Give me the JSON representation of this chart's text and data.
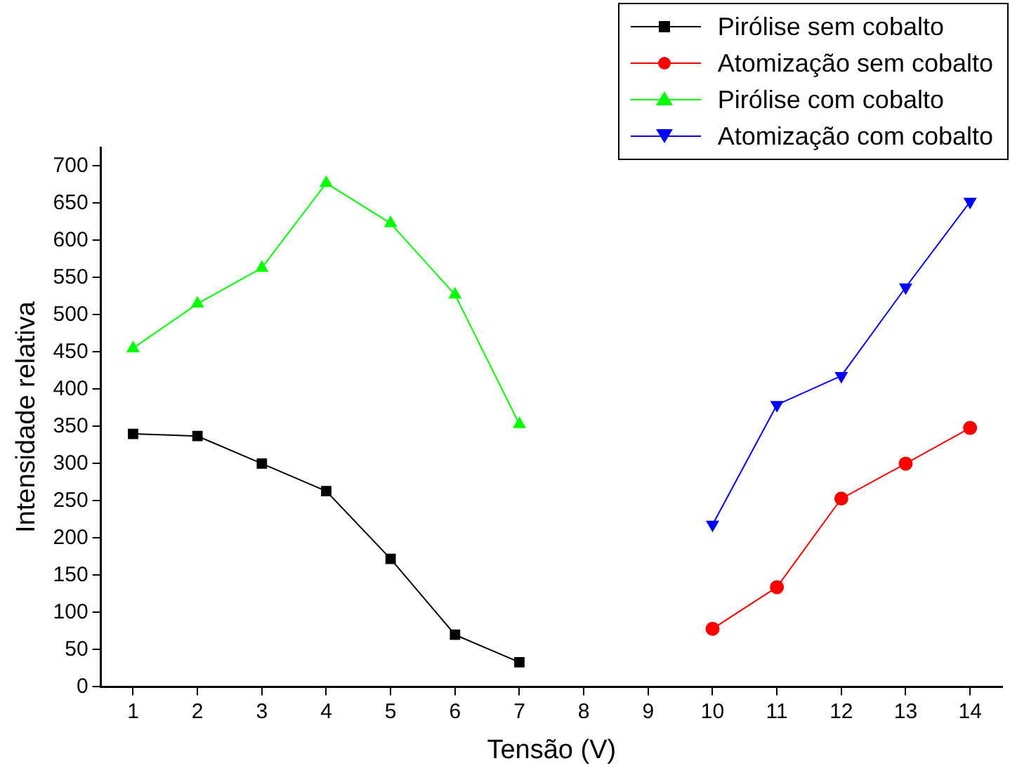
{
  "chart_data": {
    "type": "line",
    "xlabel": "Tensão (V)",
    "ylabel": "Intensidade relativa",
    "xlim": [
      0.5,
      14.5
    ],
    "xticks": [
      1,
      2,
      3,
      4,
      5,
      6,
      7,
      8,
      9,
      10,
      11,
      12,
      13,
      14
    ],
    "ylim": [
      0,
      725
    ],
    "yticks": [
      0,
      50,
      100,
      150,
      200,
      250,
      300,
      350,
      400,
      450,
      500,
      550,
      600,
      650,
      700
    ],
    "grid": false,
    "legend": "top right",
    "line_style": "solid",
    "series": [
      {
        "name": "Pirólise sem cobalto",
        "color": "#000000",
        "marker": "square",
        "x": [
          1,
          2,
          3,
          4,
          5,
          6,
          7
        ],
        "values": [
          340,
          337,
          300,
          263,
          172,
          70,
          33
        ]
      },
      {
        "name": "Atomização sem cobalto",
        "color": "#ff0000",
        "marker": "circle",
        "x": [
          10,
          11,
          12,
          13,
          14
        ],
        "values": [
          78,
          134,
          253,
          300,
          348
        ]
      },
      {
        "name": "Pirólise com cobalto",
        "color": "#00ff00",
        "marker": "triangle",
        "x": [
          1,
          2,
          3,
          4,
          5,
          6,
          7
        ],
        "values": [
          455,
          515,
          563,
          677,
          623,
          527,
          353
        ]
      },
      {
        "name": "Atomização com cobalto",
        "color": "#0000ff",
        "marker": "triangle-down",
        "x": [
          10,
          11,
          12,
          13,
          14
        ],
        "values": [
          218,
          379,
          418,
          537,
          652
        ]
      }
    ]
  }
}
